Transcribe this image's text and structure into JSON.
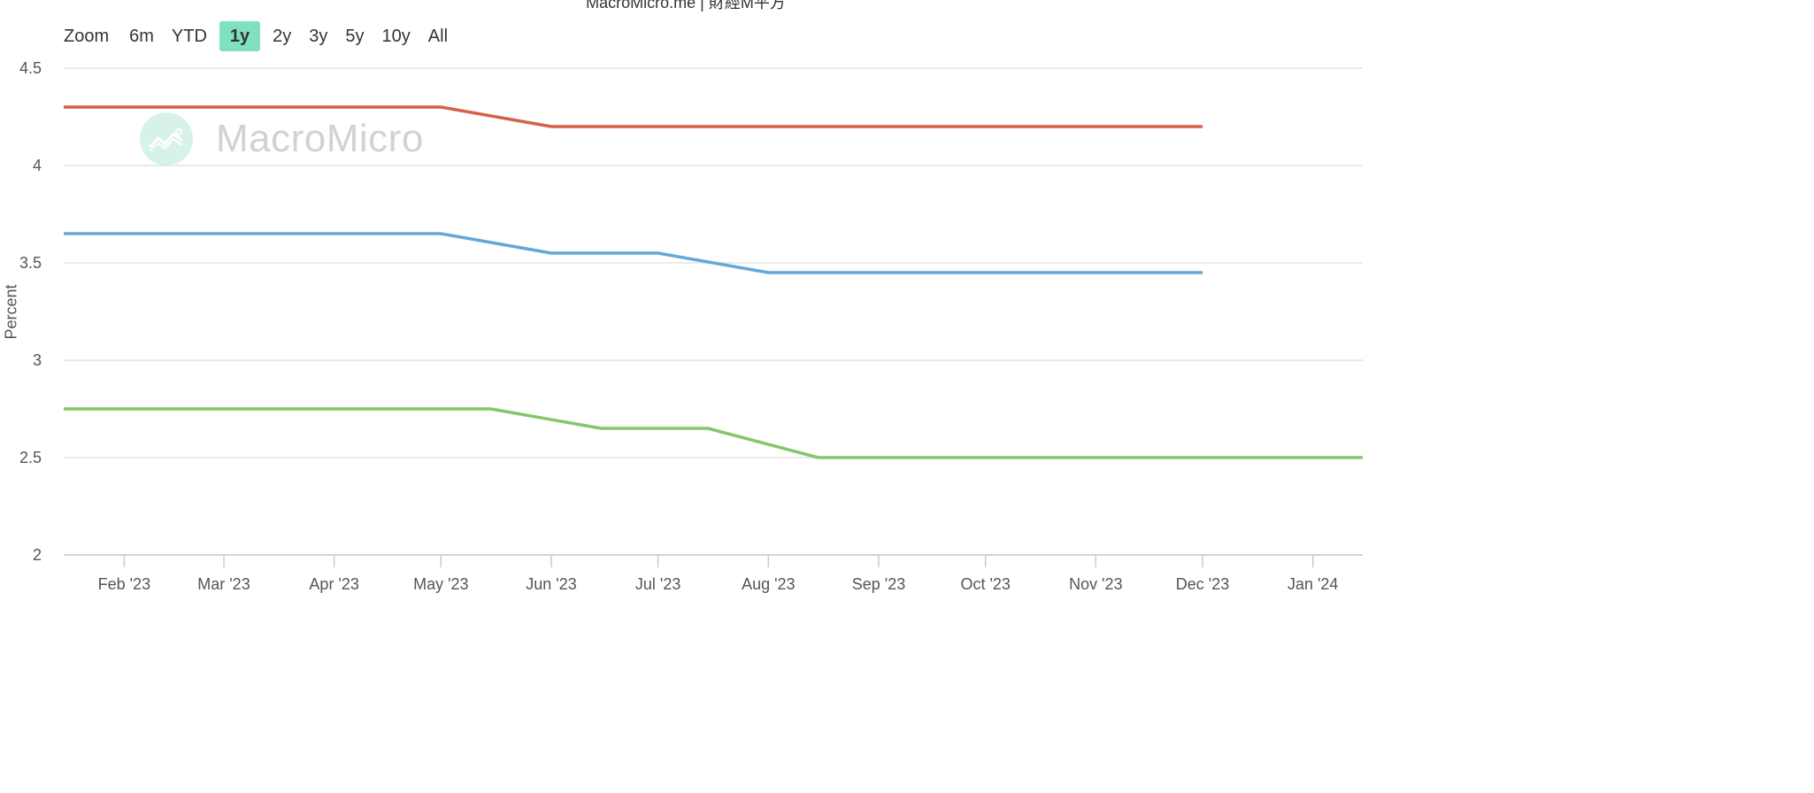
{
  "title": "MacroMicro.me | 財經M平方",
  "zoom": {
    "label": "Zoom",
    "buttons": [
      "6m",
      "YTD",
      "1y",
      "2y",
      "3y",
      "5y",
      "10y",
      "All"
    ],
    "selected": "1y"
  },
  "watermark": {
    "text": "MacroMicro"
  },
  "colors": {
    "series_red": "#d7604a",
    "series_blue": "#63a9d6",
    "series_green": "#82c76a",
    "active_button": "#7fe0c2",
    "gridline": "#e3e3e3",
    "axis": "#cccccc"
  },
  "chart_data": {
    "type": "line",
    "title": "",
    "xlabel": "",
    "ylabel": "Percent",
    "ylim": [
      2,
      4.5
    ],
    "y_ticks": [
      "2",
      "2.5",
      "3",
      "3.5",
      "4",
      "4.5"
    ],
    "x_range": [
      "2023-01-15",
      "2024-01-15"
    ],
    "x_ticks": [
      {
        "date": "2023-02-01",
        "label": "Feb '23"
      },
      {
        "date": "2023-03-01",
        "label": "Mar '23"
      },
      {
        "date": "2023-04-01",
        "label": "Apr '23"
      },
      {
        "date": "2023-05-01",
        "label": "May '23"
      },
      {
        "date": "2023-06-01",
        "label": "Jun '23"
      },
      {
        "date": "2023-07-01",
        "label": "Jul '23"
      },
      {
        "date": "2023-08-01",
        "label": "Aug '23"
      },
      {
        "date": "2023-09-01",
        "label": "Sep '23"
      },
      {
        "date": "2023-10-01",
        "label": "Oct '23"
      },
      {
        "date": "2023-11-01",
        "label": "Nov '23"
      },
      {
        "date": "2023-12-01",
        "label": "Dec '23"
      },
      {
        "date": "2024-01-01",
        "label": "Jan '24"
      }
    ],
    "grid": true,
    "series": [
      {
        "color": "#d7604a",
        "points": [
          [
            "2023-01-15",
            4.3
          ],
          [
            "2023-02-01",
            4.3
          ],
          [
            "2023-03-01",
            4.3
          ],
          [
            "2023-04-01",
            4.3
          ],
          [
            "2023-05-01",
            4.3
          ],
          [
            "2023-06-01",
            4.2
          ],
          [
            "2023-07-01",
            4.2
          ],
          [
            "2023-08-01",
            4.2
          ],
          [
            "2023-09-01",
            4.2
          ],
          [
            "2023-10-01",
            4.2
          ],
          [
            "2023-11-01",
            4.2
          ],
          [
            "2023-12-01",
            4.2
          ]
        ]
      },
      {
        "color": "#63a9d6",
        "points": [
          [
            "2023-01-15",
            3.65
          ],
          [
            "2023-02-01",
            3.65
          ],
          [
            "2023-03-01",
            3.65
          ],
          [
            "2023-04-01",
            3.65
          ],
          [
            "2023-05-01",
            3.65
          ],
          [
            "2023-06-01",
            3.55
          ],
          [
            "2023-07-01",
            3.55
          ],
          [
            "2023-08-01",
            3.45
          ],
          [
            "2023-09-01",
            3.45
          ],
          [
            "2023-10-01",
            3.45
          ],
          [
            "2023-11-01",
            3.45
          ],
          [
            "2023-12-01",
            3.45
          ]
        ]
      },
      {
        "color": "#82c76a",
        "points": [
          [
            "2023-01-15",
            2.75
          ],
          [
            "2023-02-15",
            2.75
          ],
          [
            "2023-03-15",
            2.75
          ],
          [
            "2023-04-15",
            2.75
          ],
          [
            "2023-05-15",
            2.75
          ],
          [
            "2023-06-15",
            2.65
          ],
          [
            "2023-07-15",
            2.65
          ],
          [
            "2023-08-15",
            2.5
          ],
          [
            "2023-09-15",
            2.5
          ],
          [
            "2023-10-15",
            2.5
          ],
          [
            "2023-11-15",
            2.5
          ],
          [
            "2023-12-15",
            2.5
          ],
          [
            "2024-01-15",
            2.5
          ]
        ]
      }
    ]
  }
}
